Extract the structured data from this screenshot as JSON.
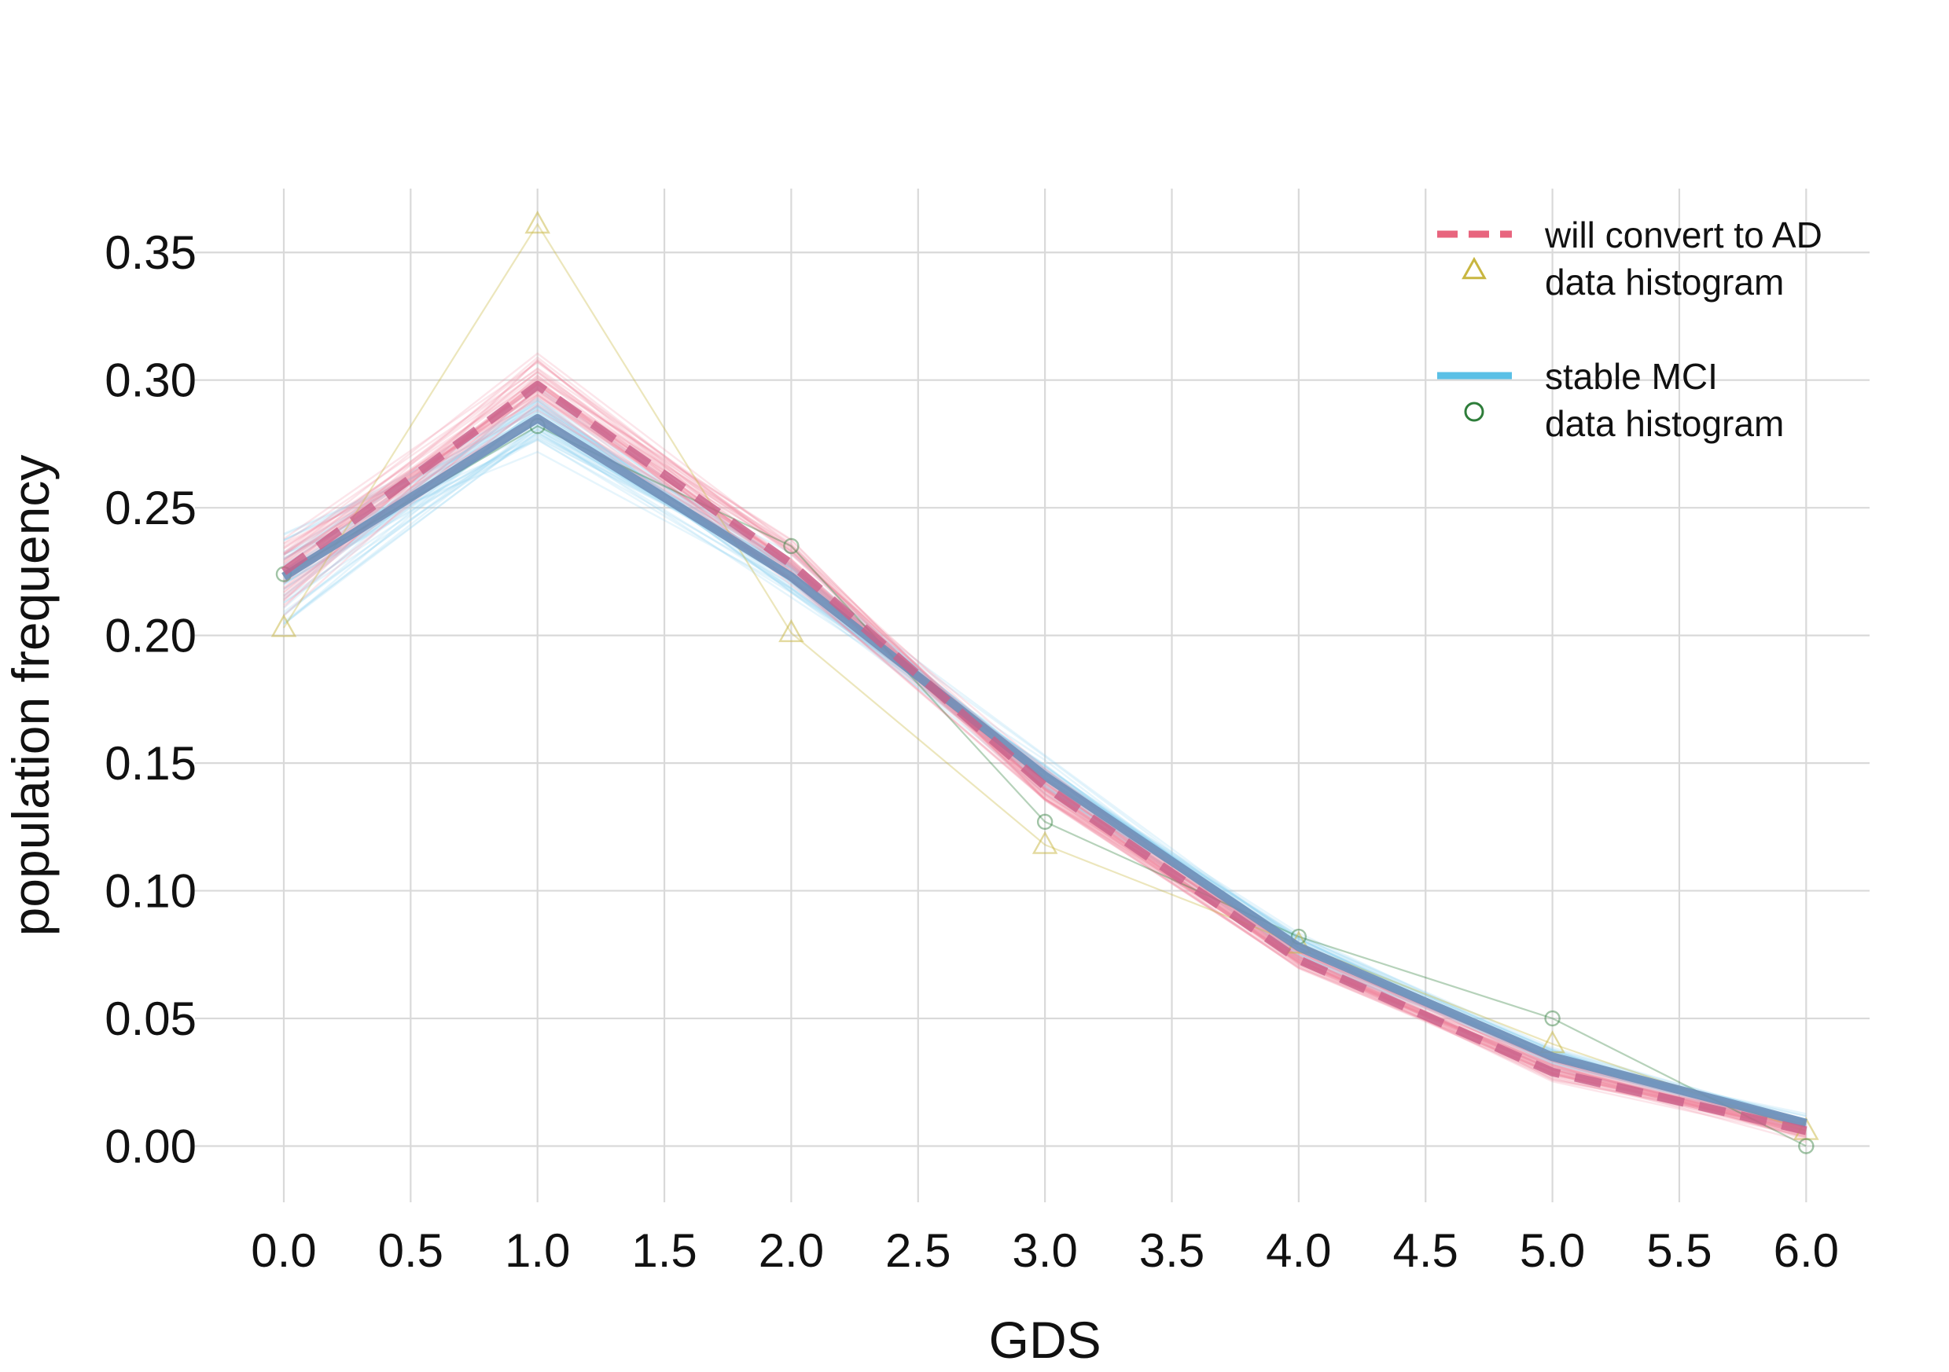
{
  "chart_data": {
    "type": "line",
    "title": "",
    "xlabel": "GDS",
    "ylabel": "population frequency",
    "xlim": [
      -0.35,
      6.25
    ],
    "ylim": [
      -0.022,
      0.375
    ],
    "x_ticks": [
      "0.0",
      "0.5",
      "1.0",
      "1.5",
      "2.0",
      "2.5",
      "3.0",
      "3.5",
      "4.0",
      "4.5",
      "5.0",
      "5.5",
      "6.0"
    ],
    "y_ticks": [
      "0.00",
      "0.05",
      "0.10",
      "0.15",
      "0.20",
      "0.25",
      "0.30",
      "0.35"
    ],
    "grid": true,
    "legend_position": "top-right",
    "x": [
      0,
      1,
      2,
      3,
      4,
      5,
      6
    ],
    "series": [
      {
        "name": "will convert to AD",
        "style": "dashed",
        "color": "#E8657E",
        "values": [
          0.225,
          0.298,
          0.228,
          0.141,
          0.073,
          0.029,
          0.006
        ]
      },
      {
        "name": "data histogram",
        "style": "markers-triangle",
        "color": "#C8B640",
        "values": [
          0.203,
          0.361,
          0.201,
          0.118,
          0.079,
          0.04,
          0.006
        ]
      },
      {
        "name": "stable MCI",
        "style": "solid",
        "color": "#5BC0E6",
        "values": [
          0.223,
          0.285,
          0.223,
          0.145,
          0.078,
          0.035,
          0.009
        ]
      },
      {
        "name": "data histogram",
        "style": "markers-circle",
        "color": "#2E7D3A",
        "values": [
          0.224,
          0.282,
          0.235,
          0.127,
          0.082,
          0.05,
          0.0
        ]
      }
    ],
    "posterior_draws": {
      "count_per_group": 45,
      "ad_color": "#F28AA0",
      "mci_color": "#8FD3F0"
    }
  },
  "legend": {
    "items": [
      {
        "label": "will convert to AD",
        "symbol": "dashed-line",
        "color": "#E8657E"
      },
      {
        "label": "data histogram",
        "symbol": "triangle",
        "color": "#C8B640"
      },
      {
        "label": "stable MCI",
        "symbol": "solid-line",
        "color": "#5BC0E6"
      },
      {
        "label": "data histogram",
        "symbol": "circle",
        "color": "#2E7D3A"
      }
    ]
  },
  "colors": {
    "grid": "#d9d9d9",
    "combined_line": "#6F8FB8"
  }
}
